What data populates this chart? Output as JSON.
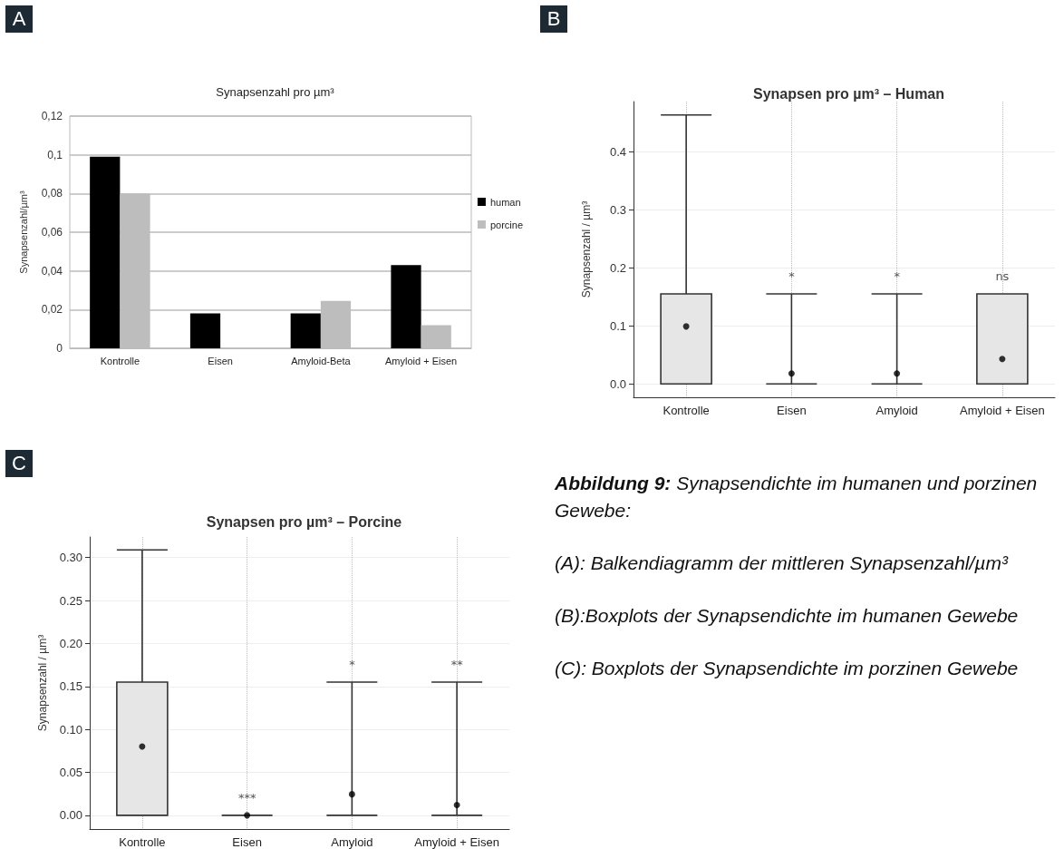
{
  "chart_data": [
    {
      "type": "bar",
      "title": "Synapsenzahl pro µm³",
      "ylabel": "Synapsenzahl/µm³",
      "annotations": [
        "A"
      ],
      "categories": [
        "Kontrolle",
        "Eisen",
        "Amyloid-Beta",
        "Amyloid + Eisen"
      ],
      "series": [
        {
          "name": "human",
          "color": "#000000",
          "values": [
            0.099,
            0.018,
            0.018,
            0.043
          ]
        },
        {
          "name": "porcine",
          "color": "#bdbdbd",
          "values": [
            0.08,
            0,
            0.0245,
            0.012
          ]
        }
      ],
      "ylim": [
        0,
        0.12
      ],
      "yticks": [
        0,
        {
          "value": 0.02,
          "label": "0,02"
        },
        {
          "value": 0.04,
          "label": "0,04"
        },
        {
          "value": 0.06,
          "label": "0,06"
        },
        {
          "value": 0.08,
          "label": "0,08"
        },
        {
          "value": 0.1,
          "label": "0,1"
        },
        {
          "value": 0.12,
          "label": "0,12"
        }
      ],
      "grid": "y",
      "legend": "right"
    },
    {
      "type": "box",
      "title": "Synapsen pro µm³ – Human",
      "ylabel": "Synapsenzahl / µm³",
      "annotations": [
        "B",
        "*",
        "*",
        "ns"
      ],
      "categories": [
        "Kontrolle",
        "Eisen",
        "Amyloid",
        "Amyloid + Eisen"
      ],
      "boxes": [
        {
          "low": 0,
          "q1": 0,
          "median": 0,
          "q3": 0.155,
          "high": 0.463,
          "mean": 0.099
        },
        {
          "low": 0,
          "q1": 0,
          "median": 0,
          "q3": 0,
          "high": 0.155,
          "mean": 0.018
        },
        {
          "low": 0,
          "q1": 0,
          "median": 0,
          "q3": 0,
          "high": 0.155,
          "mean": 0.018
        },
        {
          "low": 0,
          "q1": 0,
          "median": 0,
          "q3": 0.155,
          "high": 0.155,
          "mean": 0.043
        }
      ],
      "ylim": [
        -0.023,
        0.486
      ],
      "yticks": [
        {
          "value": 0,
          "label": "0.0"
        },
        0.1,
        0.2,
        0.3,
        0.4
      ],
      "grid": true
    },
    {
      "type": "box",
      "title": "Synapsen pro µm³ – Porcine",
      "ylabel": "Synapsenzahl / µm³",
      "annotations": [
        "C",
        "***",
        "*",
        "**"
      ],
      "categories": [
        "Kontrolle",
        "Eisen",
        "Amyloid",
        "Amyloid + Eisen"
      ],
      "boxes": [
        {
          "low": 0,
          "q1": 0,
          "median": 0,
          "q3": 0.155,
          "high": 0.309,
          "mean": 0.08
        },
        {
          "low": 0,
          "q1": 0,
          "median": 0,
          "q3": 0,
          "high": 0,
          "mean": 0
        },
        {
          "low": 0,
          "q1": 0,
          "median": 0,
          "q3": 0,
          "high": 0.155,
          "mean": 0.0245
        },
        {
          "low": 0,
          "q1": 0,
          "median": 0,
          "q3": 0,
          "high": 0.155,
          "mean": 0.012
        }
      ],
      "ylim": [
        -0.016,
        0.324
      ],
      "yticks": [
        {
          "value": 0,
          "label": "0.00"
        },
        {
          "value": 0.05,
          "label": "0.05"
        },
        {
          "value": 0.1,
          "label": "0.10"
        },
        {
          "value": 0.15,
          "label": "0.15"
        },
        {
          "value": 0.2,
          "label": "0.20"
        },
        {
          "value": 0.25,
          "label": "0.25"
        },
        {
          "value": 0.3,
          "label": "0.30"
        }
      ],
      "grid": true
    },
    {
      "type": "other",
      "title": "Abbildung 9:",
      "subtitle": "Synapsendichte im humanen und porzinen Gewebe:",
      "annotations": [
        "(A): Balkendiagramm der mittleren Synapsenzahl/µm³",
        "(B):Boxplots der Synapsendichte im humanen Gewebe",
        "(C): Boxplots der Synapsendichte im porzinen Gewebe"
      ]
    }
  ]
}
